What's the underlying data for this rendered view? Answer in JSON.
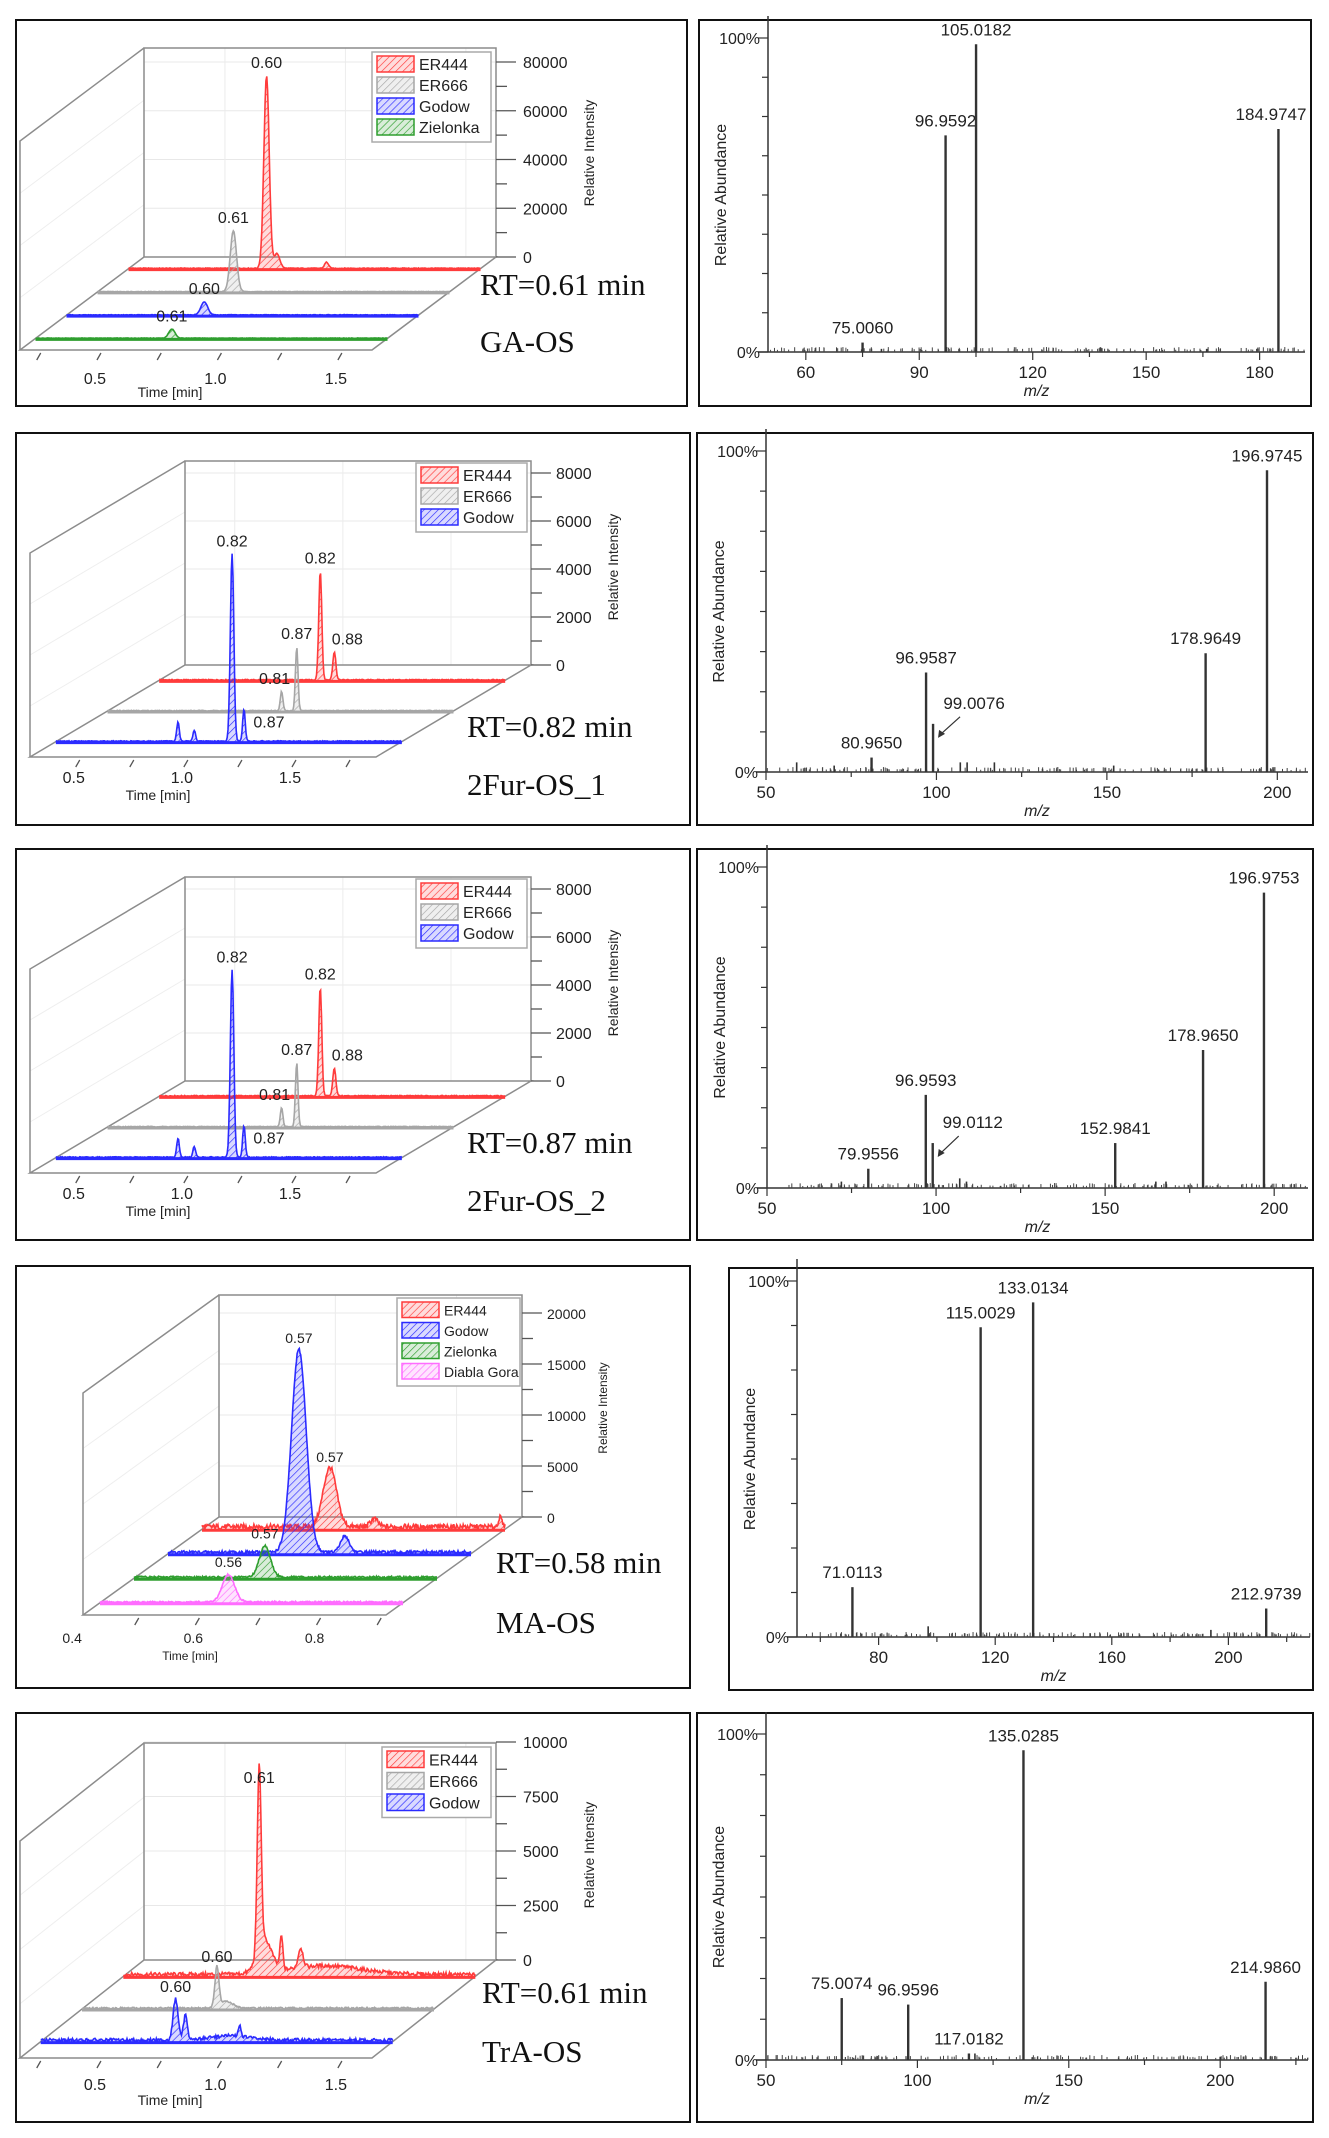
{
  "rows": [
    {
      "rt_label": "RT=0.61 min",
      "compound": "GA-OS"
    },
    {
      "rt_label": "RT=0.82 min",
      "compound": "2Fur-OS_1"
    },
    {
      "rt_label": "RT=0.87 min",
      "compound": "2Fur-OS_2"
    },
    {
      "rt_label": "RT=0.58 min",
      "compound": "MA-OS"
    },
    {
      "rt_label": "RT=0.61 min",
      "compound": "TrA-OS"
    }
  ],
  "colors": {
    "ER444": "#ff3b3b",
    "ER666": "#a6a6a6",
    "Godow": "#2b2bff",
    "Zielonka": "#2e9e2e",
    "Diabla Gora": "#ff6cff"
  },
  "chart_data": [
    {
      "type": "area",
      "kind": "3d-chromatogram",
      "xlabel": "Time [min]",
      "zlabel": "Relative Intensity",
      "xlim": [
        0.164,
        1.625
      ],
      "xticks": [
        "0.5",
        "1.0",
        "1.5"
      ],
      "zlim": [
        0,
        80000
      ],
      "zticks": [
        "0",
        "20000",
        "40000",
        "60000",
        "80000"
      ],
      "legend": "top-right",
      "series": [
        {
          "name": "ER444",
          "color": "#ff3b3b",
          "baseline_noise": 300,
          "peaks": [
            {
              "time": 0.737,
              "intensity": 79000,
              "width": 0.011,
              "label": "0.60"
            },
            {
              "time": 0.78,
              "intensity": 6000,
              "width": 0.012
            },
            {
              "time": 0.986,
              "intensity": 2500,
              "width": 0.008
            }
          ]
        },
        {
          "name": "ER666",
          "color": "#a6a6a6",
          "baseline_noise": 200,
          "peaks": [
            {
              "time": 0.728,
              "intensity": 25000,
              "width": 0.013,
              "label": "0.61"
            }
          ]
        },
        {
          "name": "Godow",
          "color": "#2b2bff",
          "baseline_noise": 200,
          "peaks": [
            {
              "time": 0.736,
              "intensity": 5300,
              "width": 0.014,
              "label": "0.60"
            }
          ]
        },
        {
          "name": "Zielonka",
          "color": "#2e9e2e",
          "baseline_noise": 200,
          "peaks": [
            {
              "time": 0.73,
              "intensity": 3700,
              "width": 0.013,
              "label": "0.61"
            }
          ]
        }
      ]
    },
    {
      "type": "bar",
      "kind": "mass-spectrum",
      "xlabel": "m/z",
      "ylabel": "Relative Abundance",
      "xlim": [
        50,
        192
      ],
      "xticks": [
        60,
        90,
        120,
        150,
        180
      ],
      "ytick_labels": [
        "0%",
        "100%"
      ],
      "peaks": [
        {
          "mz": 75.006,
          "abundance": 0.03,
          "label": "75.0060"
        },
        {
          "mz": 96.9592,
          "abundance": 0.69,
          "label": "96.9592"
        },
        {
          "mz": 105.0182,
          "abundance": 0.98,
          "label": "105.0182"
        },
        {
          "mz": 184.9747,
          "abundance": 0.71,
          "label": "184.9747"
        },
        {
          "mz": 80.0,
          "abundance": 0.01
        },
        {
          "mz": 166.0,
          "abundance": 0.01
        }
      ]
    },
    {
      "type": "area",
      "kind": "3d-chromatogram",
      "xlabel": "Time [min]",
      "zlabel": "Relative Intensity",
      "xlim": [
        0.27,
        1.87
      ],
      "xticks": [
        "0.5",
        "1.0",
        "1.5"
      ],
      "zlim": [
        0,
        8000
      ],
      "zticks": [
        "0",
        "2000",
        "4000",
        "6000",
        "8000"
      ],
      "legend": "top-right",
      "series": [
        {
          "name": "ER444",
          "color": "#ff3b3b",
          "baseline_noise": 40,
          "peaks": [
            {
              "time": 1.015,
              "intensity": 4540,
              "width": 0.007,
              "label": "0.82"
            },
            {
              "time": 1.08,
              "intensity": 1170,
              "width": 0.007,
              "label": "0.88"
            }
          ]
        },
        {
          "name": "ER666",
          "color": "#a6a6a6",
          "baseline_noise": 30,
          "peaks": [
            {
              "time": 1.075,
              "intensity": 800,
              "width": 0.006,
              "label": "0.81"
            },
            {
              "time": 1.145,
              "intensity": 2670,
              "width": 0.006,
              "label": "0.87"
            }
          ]
        },
        {
          "name": "Godow",
          "color": "#2b2bff",
          "baseline_noise": 40,
          "peaks": [
            {
              "time": 0.835,
              "intensity": 800,
              "width": 0.006
            },
            {
              "time": 0.91,
              "intensity": 460,
              "width": 0.006
            },
            {
              "time": 1.085,
              "intensity": 7800,
              "width": 0.008,
              "label": "0.82"
            },
            {
              "time": 1.14,
              "intensity": 1330,
              "width": 0.006,
              "label": "0.87"
            }
          ]
        }
      ]
    },
    {
      "type": "bar",
      "kind": "mass-spectrum",
      "xlabel": "m/z",
      "ylabel": "Relative Abundance",
      "xlim": [
        50,
        209
      ],
      "xticks": [
        50,
        100,
        150,
        200
      ],
      "ytick_labels": [
        "0%",
        "100%"
      ],
      "peaks": [
        {
          "mz": 80.965,
          "abundance": 0.045,
          "label": "80.9650"
        },
        {
          "mz": 96.9587,
          "abundance": 0.31,
          "label": "96.9587"
        },
        {
          "mz": 99.0076,
          "abundance": 0.15,
          "label": "99.0076"
        },
        {
          "mz": 178.9649,
          "abundance": 0.37,
          "label": "178.9649"
        },
        {
          "mz": 196.9745,
          "abundance": 0.94,
          "label": "196.9745"
        },
        {
          "mz": 59,
          "abundance": 0.03
        },
        {
          "mz": 70,
          "abundance": 0.02
        },
        {
          "mz": 107,
          "abundance": 0.03
        },
        {
          "mz": 109,
          "abundance": 0.03
        },
        {
          "mz": 117,
          "abundance": 0.03
        },
        {
          "mz": 152,
          "abundance": 0.02
        }
      ]
    },
    {
      "type": "area",
      "kind": "3d-chromatogram",
      "xlabel": "Time [min]",
      "zlabel": "Relative Intensity",
      "xlim": [
        0.27,
        1.87
      ],
      "xticks": [
        "0.5",
        "1.0",
        "1.5"
      ],
      "zlim": [
        0,
        8000
      ],
      "zticks": [
        "0",
        "2000",
        "4000",
        "6000",
        "8000"
      ],
      "legend": "top-right",
      "series": [
        {
          "name": "ER444",
          "color": "#ff3b3b",
          "baseline_noise": 40,
          "peaks": [
            {
              "time": 1.015,
              "intensity": 4540,
              "width": 0.007,
              "label": "0.82"
            },
            {
              "time": 1.08,
              "intensity": 1170,
              "width": 0.007,
              "label": "0.88"
            }
          ]
        },
        {
          "name": "ER666",
          "color": "#a6a6a6",
          "baseline_noise": 30,
          "peaks": [
            {
              "time": 1.075,
              "intensity": 800,
              "width": 0.006,
              "label": "0.81"
            },
            {
              "time": 1.145,
              "intensity": 2670,
              "width": 0.006,
              "label": "0.87"
            }
          ]
        },
        {
          "name": "Godow",
          "color": "#2b2bff",
          "baseline_noise": 40,
          "peaks": [
            {
              "time": 0.835,
              "intensity": 800,
              "width": 0.006
            },
            {
              "time": 0.91,
              "intensity": 460,
              "width": 0.006
            },
            {
              "time": 1.085,
              "intensity": 7800,
              "width": 0.008,
              "label": "0.82"
            },
            {
              "time": 1.14,
              "intensity": 1330,
              "width": 0.006,
              "label": "0.87"
            }
          ]
        }
      ]
    },
    {
      "type": "bar",
      "kind": "mass-spectrum",
      "xlabel": "m/z",
      "ylabel": "Relative Abundance",
      "xlim": [
        50,
        210
      ],
      "xticks": [
        50,
        100,
        150,
        200
      ],
      "ytick_labels": [
        "0%",
        "100%"
      ],
      "peaks": [
        {
          "mz": 79.9556,
          "abundance": 0.06,
          "label": "79.9556"
        },
        {
          "mz": 96.9593,
          "abundance": 0.29,
          "label": "96.9593"
        },
        {
          "mz": 99.0112,
          "abundance": 0.14,
          "label": "99.0112"
        },
        {
          "mz": 152.9841,
          "abundance": 0.14,
          "label": "152.9841"
        },
        {
          "mz": 178.965,
          "abundance": 0.43,
          "label": "178.9650"
        },
        {
          "mz": 196.9753,
          "abundance": 0.92,
          "label": "196.9753"
        },
        {
          "mz": 72,
          "abundance": 0.02
        },
        {
          "mz": 107,
          "abundance": 0.03
        },
        {
          "mz": 109,
          "abundance": 0.02
        },
        {
          "mz": 165,
          "abundance": 0.02
        },
        {
          "mz": 168,
          "abundance": 0.02
        }
      ]
    },
    {
      "type": "area",
      "kind": "3d-chromatogram",
      "xlabel": "Time [min]",
      "zlabel": "Relative Intensity",
      "xlim": [
        0.408,
        0.908
      ],
      "xticks": [
        "0.4",
        "0.6",
        "0.8"
      ],
      "zlim": [
        0,
        20000
      ],
      "zticks": [
        "0",
        "5000",
        "10000",
        "15000",
        "20000"
      ],
      "legend": "top-right",
      "series": [
        {
          "name": "ER444",
          "color": "#ff3b3b",
          "baseline_noise": 500,
          "peaks": [
            {
              "time": 0.619,
              "intensity": 5800,
              "width": 0.011,
              "label": "0.57"
            },
            {
              "time": 0.692,
              "intensity": 800,
              "width": 0.006
            },
            {
              "time": 0.9,
              "intensity": 900,
              "width": 0.003
            }
          ]
        },
        {
          "name": "Godow",
          "color": "#2b2bff",
          "baseline_noise": 300,
          "peaks": [
            {
              "time": 0.624,
              "intensity": 19900,
              "width": 0.012,
              "label": "0.57"
            },
            {
              "time": 0.7,
              "intensity": 1600,
              "width": 0.007
            }
          ]
        },
        {
          "name": "Zielonka",
          "color": "#2e9e2e",
          "baseline_noise": 200,
          "peaks": [
            {
              "time": 0.624,
              "intensity": 3100,
              "width": 0.009,
              "label": "0.57"
            }
          ]
        },
        {
          "name": "Diabla Gora",
          "color": "#ff6cff",
          "baseline_noise": 150,
          "peaks": [
            {
              "time": 0.62,
              "intensity": 2700,
              "width": 0.01,
              "label": "0.56"
            }
          ]
        }
      ]
    },
    {
      "type": "bar",
      "kind": "mass-spectrum",
      "xlabel": "m/z",
      "ylabel": "Relative Abundance",
      "xlim": [
        52,
        228
      ],
      "xticks": [
        80,
        120,
        160,
        200
      ],
      "ytick_labels": [
        "0%",
        "100%"
      ],
      "peaks": [
        {
          "mz": 71.0113,
          "abundance": 0.14,
          "label": "71.0113"
        },
        {
          "mz": 115.0029,
          "abundance": 0.87,
          "label": "115.0029"
        },
        {
          "mz": 133.0134,
          "abundance": 0.94,
          "label": "133.0134"
        },
        {
          "mz": 212.9739,
          "abundance": 0.08,
          "label": "212.9739"
        },
        {
          "mz": 97,
          "abundance": 0.03
        },
        {
          "mz": 194,
          "abundance": 0.02
        }
      ]
    },
    {
      "type": "area",
      "kind": "3d-chromatogram",
      "xlabel": "Time [min]",
      "zlabel": "Relative Intensity",
      "xlim": [
        0.164,
        1.625
      ],
      "xticks": [
        "0.5",
        "1.0",
        "1.5"
      ],
      "zlim": [
        0,
        10000
      ],
      "zticks": [
        "0",
        "2500",
        "5000",
        "7500",
        "10000"
      ],
      "legend": "top-right",
      "series": [
        {
          "name": "ER444",
          "color": "#ff3b3b",
          "baseline_noise": 180,
          "peaks": [
            {
              "time": 0.728,
              "intensity": 8500,
              "width": 0.008,
              "label": "0.61"
            },
            {
              "time": 0.75,
              "intensity": 1500,
              "width": 0.03
            },
            {
              "time": 0.82,
              "intensity": 1500,
              "width": 0.006
            },
            {
              "time": 0.9,
              "intensity": 900,
              "width": 0.01
            },
            {
              "time": 1.0,
              "intensity": 400,
              "width": 0.15
            }
          ]
        },
        {
          "name": "ER666",
          "color": "#a6a6a6",
          "baseline_noise": 80,
          "peaks": [
            {
              "time": 0.724,
              "intensity": 1800,
              "width": 0.008,
              "label": "0.60"
            },
            {
              "time": 0.76,
              "intensity": 300,
              "width": 0.03
            }
          ]
        },
        {
          "name": "Godow",
          "color": "#2b2bff",
          "baseline_noise": 150,
          "peaks": [
            {
              "time": 0.724,
              "intensity": 1900,
              "width": 0.01,
              "label": "0.60"
            },
            {
              "time": 0.765,
              "intensity": 1150,
              "width": 0.008
            },
            {
              "time": 0.99,
              "intensity": 550,
              "width": 0.005
            },
            {
              "time": 0.95,
              "intensity": 200,
              "width": 0.08
            }
          ]
        }
      ]
    },
    {
      "type": "bar",
      "kind": "mass-spectrum",
      "xlabel": "m/z",
      "ylabel": "Relative Abundance",
      "xlim": [
        50,
        229
      ],
      "xticks": [
        50,
        100,
        150,
        200
      ],
      "ytick_labels": [
        "0%",
        "100%"
      ],
      "peaks": [
        {
          "mz": 75.0074,
          "abundance": 0.19,
          "label": "75.0074"
        },
        {
          "mz": 96.9596,
          "abundance": 0.17,
          "label": "96.9596"
        },
        {
          "mz": 117.0182,
          "abundance": 0.02,
          "label": "117.0182"
        },
        {
          "mz": 135.0285,
          "abundance": 0.95,
          "label": "135.0285"
        },
        {
          "mz": 214.986,
          "abundance": 0.24,
          "label": "214.9860"
        },
        {
          "mz": 119,
          "abundance": 0.02
        },
        {
          "mz": 200,
          "abundance": 0.01
        }
      ]
    }
  ]
}
